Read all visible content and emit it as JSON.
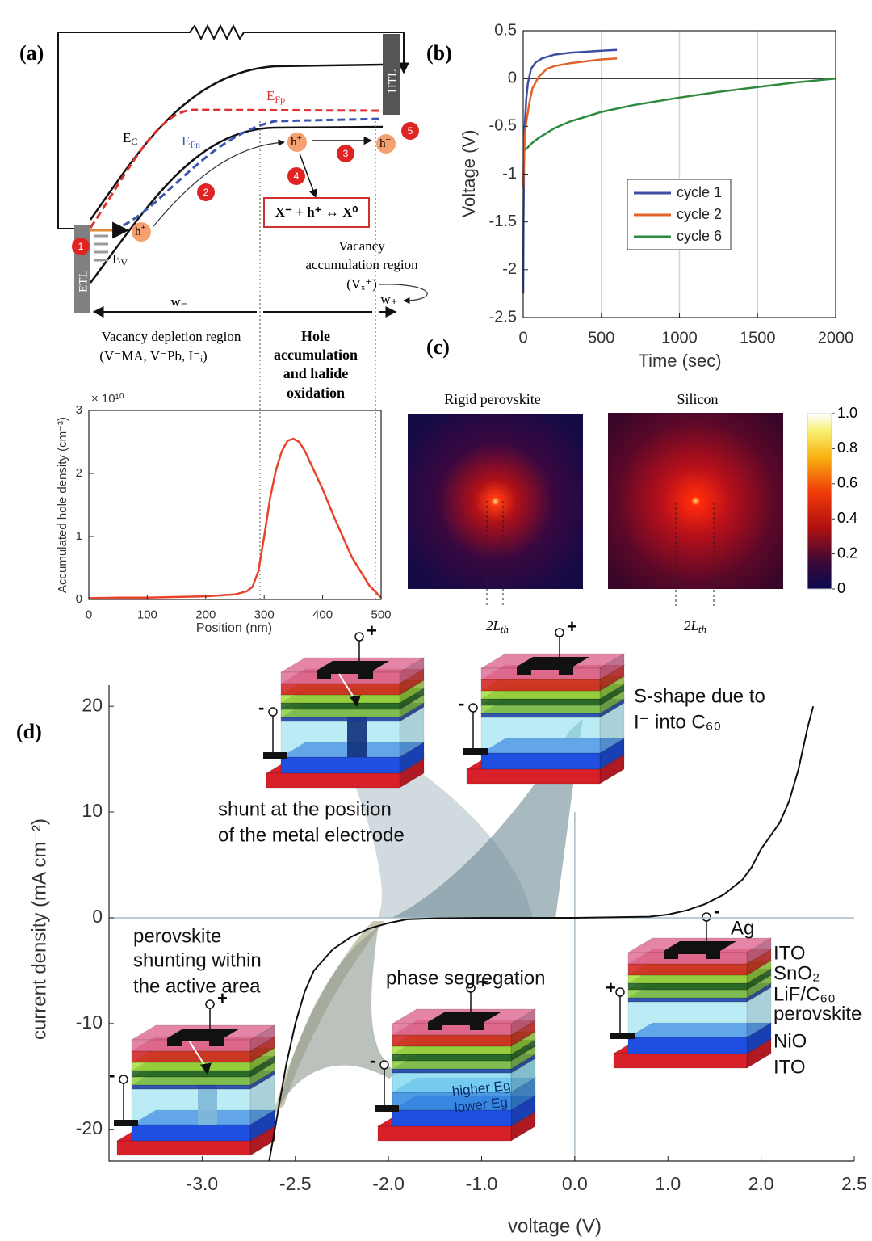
{
  "panel_labels": [
    "(a)",
    "(b)",
    "(c)",
    "(d)"
  ],
  "band_diagram": {
    "ec": [
      "E",
      "C"
    ],
    "efp": [
      "E",
      "Fp"
    ],
    "efn": [
      "E",
      "Fn"
    ],
    "ev": [
      "E",
      "V"
    ],
    "etl": "ETL",
    "htl": "HTL",
    "hole": [
      "h",
      "+"
    ],
    "steps": [
      "1",
      "2",
      "3",
      "4",
      "5"
    ],
    "reaction": "X⁻ + h⁺ ↔ X⁰",
    "vacancy_region": [
      "Vacancy",
      "accumulation region",
      "(Vₓ⁺)"
    ],
    "w_minus": "w₋",
    "w_plus": "w₊",
    "depletion": [
      "Vacancy depletion region",
      "(V⁻MA, V⁻Pb, I⁻ᵢ)"
    ],
    "hole_region": [
      "Hole",
      "accumulation",
      "and  halide",
      "oxidation"
    ]
  },
  "heatmaps": {
    "titles": [
      "Rigid perovskite",
      "Silicon"
    ],
    "colorbar_ticks": [
      0,
      0.2,
      0.4,
      0.6,
      0.8,
      {
        "value": 1,
        "label": "1.0"
      }
    ],
    "length_label": {
      "main": "2L",
      "sub": "th"
    }
  },
  "chart_data": [
    {
      "type": "line",
      "x_label": "Position (nm)",
      "y_label": "Accumulated hole density (cm⁻³)",
      "y_multiplier": "× 10¹⁰",
      "x": [
        0,
        50,
        100,
        150,
        200,
        250,
        270,
        280,
        290,
        300,
        310,
        320,
        330,
        340,
        350,
        360,
        370,
        380,
        400,
        420,
        450,
        480,
        500
      ],
      "series": [
        {
          "color": "#e8442c",
          "values": [
            0.02,
            0.03,
            0.03,
            0.04,
            0.05,
            0.08,
            0.13,
            0.2,
            0.45,
            1.0,
            1.6,
            2.05,
            2.35,
            2.52,
            2.55,
            2.5,
            2.35,
            2.15,
            1.75,
            1.3,
            0.67,
            0.22,
            0.03
          ]
        }
      ],
      "xlim": [
        0,
        500
      ],
      "ylim": [
        0,
        3
      ],
      "xticks": [
        0,
        100,
        200,
        300,
        400,
        500
      ],
      "yticks": [
        0,
        1,
        2,
        3
      ]
    },
    {
      "type": "line",
      "x_label": "Time (sec)",
      "y_label": "Voltage (V)",
      "series": [
        {
          "name": "cycle 1",
          "color": "#3c4fa3",
          "x": [
            0,
            2,
            5,
            10,
            20,
            30,
            50,
            80,
            120,
            200,
            300,
            400,
            500,
            600
          ],
          "values": [
            -2.25,
            -1.5,
            -0.9,
            -0.5,
            -0.2,
            -0.05,
            0.1,
            0.17,
            0.21,
            0.25,
            0.27,
            0.28,
            0.29,
            0.3
          ]
        },
        {
          "name": "cycle 2",
          "color": "#e2622b",
          "x": [
            0,
            3,
            6,
            10,
            20,
            40,
            60,
            100,
            150,
            200,
            300,
            400,
            500,
            600
          ],
          "values": [
            -1.15,
            -0.9,
            -0.75,
            -0.6,
            -0.45,
            -0.25,
            -0.1,
            0.02,
            0.1,
            0.13,
            0.16,
            0.18,
            0.2,
            0.21
          ]
        },
        {
          "name": "cycle 6",
          "color": "#2e8b3e",
          "x": [
            10,
            30,
            60,
            100,
            200,
            300,
            400,
            500,
            700,
            1000,
            1250,
            1500,
            1750,
            2000
          ],
          "values": [
            -0.75,
            -0.72,
            -0.67,
            -0.62,
            -0.52,
            -0.45,
            -0.4,
            -0.35,
            -0.28,
            -0.2,
            -0.14,
            -0.09,
            -0.04,
            0
          ]
        }
      ],
      "xlim": [
        0,
        2000
      ],
      "ylim": [
        -2.5,
        0.5
      ],
      "xticks": [
        0,
        500,
        1000,
        1500,
        2000
      ],
      "yticks": [
        -2.5,
        -2,
        -1.5,
        -1,
        -0.5,
        0,
        0.5
      ],
      "xgrid": true,
      "zero_line": true,
      "legend": "right"
    },
    {
      "type": "line",
      "x_label": "voltage (V)",
      "y_label": "current density (mA cm⁻²)",
      "x": [
        -2.64,
        -2.6,
        -2.55,
        -2.5,
        -2.45,
        -2.4,
        -2.3,
        -2.2,
        -2.1,
        -2.0,
        -1.8,
        -1.5,
        -1.0,
        0,
        0.8,
        1.0,
        1.2,
        1.4,
        1.6,
        1.8,
        1.9,
        2.0,
        2.1,
        2.15,
        2.2,
        2.25,
        2.28
      ],
      "series": [
        {
          "color": "#111111",
          "values": [
            -23,
            -19,
            -14,
            -10,
            -7,
            -5,
            -3,
            -1.8,
            -1,
            -0.5,
            -0.15,
            -0.05,
            0,
            0,
            0.1,
            0.3,
            0.7,
            1.3,
            2.2,
            3.6,
            4.8,
            6.5,
            9,
            11,
            14,
            18,
            20
          ]
        }
      ],
      "xlim": [
        -3.5,
        2.5
      ],
      "ylim": [
        -23,
        22
      ],
      "xticks": [
        {
          "value": -3,
          "label": "-3.0"
        },
        -2.5,
        {
          "value": -2,
          "label": "-2.0"
        },
        {
          "value": -1,
          "label": "-1.0"
        },
        {
          "value": 0,
          "label": "0.0"
        },
        {
          "value": 1,
          "label": "1.0"
        },
        {
          "value": 2,
          "label": "2.0"
        },
        2.5
      ],
      "yticks": [
        -20,
        -10,
        0,
        10,
        20
      ],
      "xscale": "even-ticks",
      "zero_line": true
    }
  ],
  "devices": {
    "terminals": [
      "+",
      "-"
    ],
    "shunt_electrode": [
      "shunt at the position",
      "of the metal electrode"
    ],
    "s_shape": [
      "S-shape due to",
      "I⁻ into C₆₀"
    ],
    "shunt_active": [
      "perovskite",
      "shunting within",
      "the active area"
    ],
    "phase_segregation": "phase segregation",
    "bandgaps": [
      "higher Eg",
      "lower Eg"
    ],
    "layers": [
      "Ag",
      "ITO",
      "SnO₂",
      "LiF/C₆₀",
      "perovskite",
      "NiO",
      "ITO"
    ]
  }
}
